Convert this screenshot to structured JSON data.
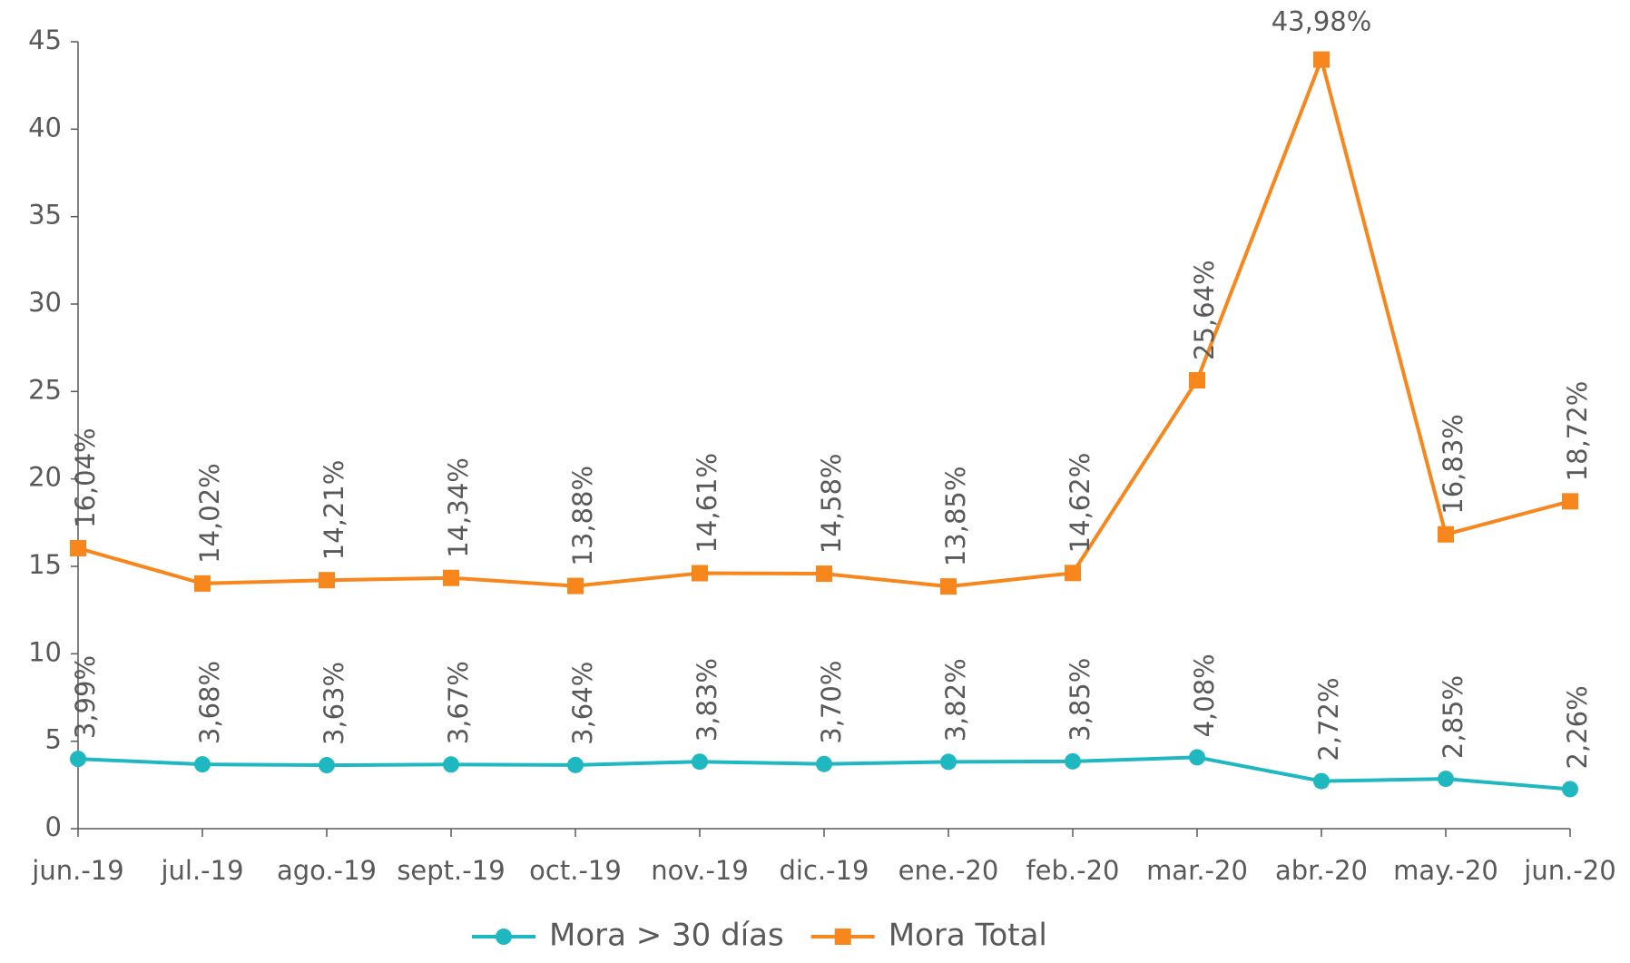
{
  "chart_data": {
    "type": "line",
    "categories": [
      "jun.-19",
      "jul.-19",
      "ago.-19",
      "sept.-19",
      "oct.-19",
      "nov.-19",
      "dic.-19",
      "ene.-20",
      "feb.-20",
      "mar.-20",
      "abr.-20",
      "may.-20",
      "jun.-20"
    ],
    "series": [
      {
        "name": "Mora > 30 días",
        "color": "#1fb8c0",
        "marker": "circle",
        "values": [
          3.99,
          3.68,
          3.63,
          3.67,
          3.64,
          3.83,
          3.7,
          3.82,
          3.85,
          4.08,
          2.72,
          2.85,
          2.26
        ],
        "value_labels": [
          "3,99%",
          "3,68%",
          "3,63%",
          "3,67%",
          "3,64%",
          "3,83%",
          "3,70%",
          "3,82%",
          "3,85%",
          "4,08%",
          "2,72%",
          "2,85%",
          "2,26%"
        ]
      },
      {
        "name": "Mora Total",
        "color": "#f7861c",
        "marker": "square",
        "values": [
          16.04,
          14.02,
          14.21,
          14.34,
          13.88,
          14.61,
          14.58,
          13.85,
          14.62,
          25.64,
          43.98,
          16.83,
          18.72
        ],
        "value_labels": [
          "16,04%",
          "14,02%",
          "14,21%",
          "14,34%",
          "13,88%",
          "14,61%",
          "14,58%",
          "13,85%",
          "14,62%",
          "25,64%",
          "43,98%",
          "16,83%",
          "18,72%"
        ]
      }
    ],
    "ylim": [
      0,
      45
    ],
    "yticks": [
      0,
      5,
      10,
      15,
      20,
      25,
      30,
      35,
      40,
      45
    ],
    "legend": "bottom"
  }
}
